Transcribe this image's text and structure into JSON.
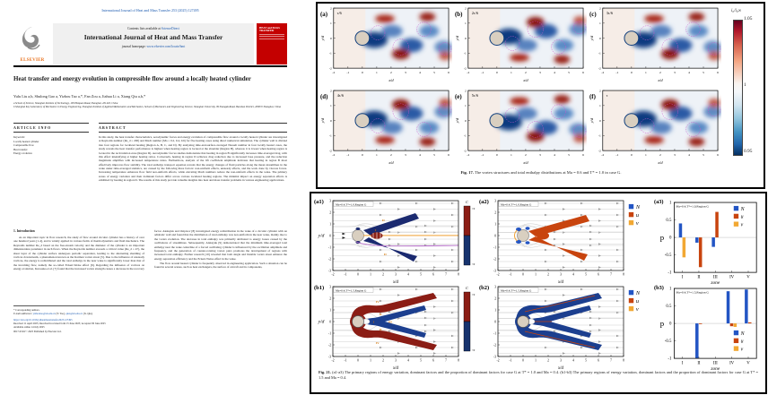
{
  "paper": {
    "journal_ref": "International Journal of Heat and Mass Transfer 253 (2025) 127495",
    "header": {
      "contents_prefix": "Contents lists available at",
      "contents_link": "ScienceDirect",
      "journal_title": "International Journal of Heat and Mass Transfer",
      "homepage_prefix": "journal homepage:",
      "homepage_link": "www.elsevier.com/locate/hmt",
      "publisher": "ELSEVIER",
      "cover_title": "HEAT and MASS TRANSFER"
    },
    "title": "Heat transfer and energy evolution in compressible flow around a locally heated cylinder",
    "authors": "Yulu Liu a,b, Shulong Gao a, Yizhou Tao a,*, Fan Zou a, Jiahua Li a, Xiang Qiu a,b,*",
    "affiliation_a": "a School of Science, Shanghai Institute of Technology, 100 Haiquan Road, Shanghai, 201418, China",
    "affiliation_b": "b Shanghai Key Laboratory of Mechanics in Energy Engineering, Shanghai Institute of Applied Mathematics and Mechanics, School of Mechanics and Engineering Science, Shanghai University, 99 Shangda Road, Baoshan District, 200072 Shanghai, China",
    "article_info_heading": "ARTICLE INFO",
    "abstract_heading": "ABSTRACT",
    "keywords_label": "Keywords:",
    "keywords": [
      "Locally heated cylinder",
      "Compressible flow",
      "Heat transfer",
      "Energy evolution"
    ],
    "abstract": "In this study, the heat transfer characteristics, aerodynamic forces and energy evolution of compressible flow around a locally heated cylinder are investigated at Reynolds number (Re_d = 200) and Mach number (Ma = 0.2, 0.4, 0.6) for five heating cases using direct numerical simulation. The cylinder wall is divided into four regions for localized heating (Region A, B, C, and D). By analyzing time-and-surface-averaged Nusselt number in four locally heated cases, the study reveals the heat transfer performance is highest when heating region is located at the shoulder (Region B), whereas it is lowest when heating region is located in the recirculation zone (Region D). Aerodynamic forces studies demonstrate that heating in region B significantly increases time-averaged drag, with this effect intensifying at higher heating ratios. Conversely, heating in region D achieves drag reduction due to increased base pressure, and the reduction magnitude amplifies with increased temperature ratios. Furthermore, analysis of the lift coefficient amplitude indicates that heating in region B most effectively improves flow stability. The total enthalpy transport equation reveals that the energy changes of fluid particles along the mean streamlines in the wake under time-averaged statistics, are caused by the following three factors: non-uniform effects, unsteady effects, and the work done by viscous forces. Increasing temperature enhances flow field non-uniform effects, while elevating Mach numbers reduce the non-uniform effects in the wake. The primary zones of energy variation and their dominant factors differ across various localized heating regions. The minimal impact on energy separation effects is exhibited by heating in region D. The results of this study provide valuable insights into heat and mass transfer problems in various engineering applications.",
    "intro_heading": "1. Introduction",
    "intro_col1": "As an important topic in flow research, the study of flow around circular cylinder has a history of over one hundred years [1-4], and is widely applied in various fields of thermodynamics and fluid mechanics. The Reynolds number Re_d based on the free-stream velocity and the diameter of the cylinder is an important dimensionless parameter in such flows. When the Reynolds number exceeds a critical value (Re_d = 47), the shear layer of the cylinder surface undergoes periodic separation, leading to the alternating shedding of vortices downstream, a phenomenon known as the Karman vortex street [5]. Due to the influence of unsteady vortices, the energy is redistributed and the total enthalpy in the near wake is significantly lower than that of the incoming flow, namely the so-called Eckert-Weise effect [6]. Regarding the influence of vortices on energy evolution, Kurosaka et al. [7] found that the increased vortex strength causes a decrease in the recovery",
    "intro_col2_p1": "factor. Aleksyuk and Osiptsov [8] investigated energy redistribution in the wake of a circular cylinder with an adiabatic wall and found that the distribution of total enthalpy was non-uniform in the near wake, mainly due to the vortex evolution. The decrease in total enthalpy was primarily attributed to energy losses caused by the oscillations of streamlines. Subsequently, Aleksyuk [9] demonstrated that the minimum time-averaged total enthalpy near the wake centerline of a forced oscillating cylinder is influenced by the oscillation amplitude and frequency, and the generation of counter-rotating vortex pairs promotes the development of regions with increased total enthalpy. Further research [10] revealed that both single and bistable vortex street enhance the energy separation efficiency and the Eckert-Weise effect in the wake.",
    "intro_col2_p2": "The flow around heated cylinder is frequently observed in engineering application. Such a situation can be found in several scenes, such as heat exchangers, the surface of aircraft and in components,",
    "footnote_star": "* Corresponding authors.",
    "footnote_email_prefix": "E-mail addresses:",
    "footnote_email1": "yizhoutao@sit.edu.cn",
    "footnote_email1_suffix": "(Y. Tao),",
    "footnote_email2": "qiux@sit.edu.cn",
    "footnote_email2_suffix": "(X. Qiu).",
    "doi": "https://doi.org/10.1016/j.ijheatmasstransfer.2025.127495",
    "received": "Received 11 April 2025; Received in revised form 15 June 2025; Accepted 30 June 2025",
    "online": "Available online 14 July 2025",
    "issn": "0017-9310/© 2025 Published by Elsevier Ltd."
  },
  "fig17": {
    "panels": [
      {
        "letter": "(a)",
        "time": "τ/6"
      },
      {
        "letter": "(b)",
        "time": "2τ/6"
      },
      {
        "letter": "(c)",
        "time": "3τ/6"
      },
      {
        "letter": "(d)",
        "time": "4τ/6"
      },
      {
        "letter": "(e)",
        "time": "5τ/6"
      },
      {
        "letter": "(f)",
        "time": "τ"
      }
    ],
    "xlabel": "x/d",
    "ylabel": "y/d",
    "xticks": [
      "-2",
      "-1",
      "0",
      "1",
      "2",
      "3",
      "4",
      "5",
      "6"
    ],
    "yticks": [
      "2",
      "1",
      "0",
      "-1",
      "-2"
    ],
    "colorbar": {
      "label": "i₀/i₀∞",
      "tick_top": "1.05",
      "tick_mid": "1",
      "tick_bottom": "0.95"
    },
    "caption_label": "Fig. 17.",
    "caption_text": "The vortex structures and total enthalpy distributions at Ma = 0.6 and T* = 1.0 in case G."
  },
  "fig21": {
    "panels": [
      {
        "id": "(a1)",
        "cond": "Ma=0.4,T*=1.0,Region G",
        "ylabel": true,
        "colorbar": true,
        "overlay": "a1"
      },
      {
        "id": "(a2)",
        "cond": "Ma=0.4,T*=1.0,Region G",
        "legend": true,
        "overlay": "a2"
      },
      {
        "id": "(b1)",
        "cond": "Ma=0.4,T*=1.5,Region G",
        "ylabel": true,
        "colorbar": true,
        "overlay": "b1"
      },
      {
        "id": "(b2)",
        "cond": "Ma=0.4,T*=1.5,Region G",
        "legend": true,
        "overlay": "b2"
      }
    ],
    "xlabel": "x/d",
    "ylabel": "y/d",
    "xticks": [
      "-2",
      "-1",
      "0",
      "1",
      "2",
      "3",
      "4",
      "5",
      "6",
      "7",
      "8"
    ],
    "yticks": [
      "3",
      "2",
      "1",
      "0",
      "-1",
      "-2",
      "-3"
    ],
    "colorbar": {
      "label": "C",
      "tick_top": ">0",
      "tick_bottom": "<0"
    },
    "legend": [
      {
        "label": "N",
        "color": "#2355c4"
      },
      {
        "label": "u",
        "color": "#c8440e"
      },
      {
        "label": "v",
        "color": "#f2a833"
      }
    ],
    "zone_labels": [
      "I",
      "II",
      "III",
      "IV",
      "V"
    ],
    "caption_label": "Fig. 21.",
    "caption_text": "(a1-a3) The primary regions of energy variation, dominant factors and the proportion of dominant factors for case G at T* = 1.0 and Ma = 0.4. (b1-b3) The primary regions of energy variation, dominant factors and the proportion of dominant factors for case G at T* = 1.5 and Ma = 0.4."
  },
  "chart_data": [
    {
      "id": "a3",
      "panel_id": "(a3)",
      "type": "bar",
      "title": "Ma=0.4,T*=1.0,Region G",
      "categories": [
        "I",
        "II",
        "III",
        "IV",
        "V"
      ],
      "series": [
        {
          "name": "N",
          "color": "#2355c4",
          "values": [
            0.4,
            -0.15,
            -0.27,
            0,
            0
          ]
        },
        {
          "name": "u",
          "color": "#c8440e",
          "values": [
            0,
            -0.85,
            0.73,
            0,
            0
          ]
        },
        {
          "name": "v",
          "color": "#f2a833",
          "values": [
            -0.57,
            0,
            0,
            0,
            0
          ]
        }
      ],
      "xlabel": "zone",
      "ylabel": "p",
      "ylim": [
        -1,
        1
      ],
      "yticks": [
        "1",
        "0.5",
        "0",
        "-0.5",
        "-1"
      ],
      "legend_position": "top-right"
    },
    {
      "id": "b3",
      "panel_id": "(b3)",
      "type": "bar",
      "title": "Ma=0.4,T*=1.5,Region G",
      "categories": [
        "I",
        "II",
        "III",
        "IV",
        "V"
      ],
      "series": [
        {
          "name": "N",
          "color": "#2355c4",
          "values": [
            0,
            -1.0,
            0,
            0.92,
            0.97
          ]
        },
        {
          "name": "u",
          "color": "#c8440e",
          "values": [
            0,
            -0.02,
            0,
            -0.08,
            0.03
          ]
        },
        {
          "name": "v",
          "color": "#f2a833",
          "values": [
            0,
            0,
            0,
            -0.1,
            0
          ]
        }
      ],
      "xlabel": "zone",
      "ylabel": "p",
      "ylim": [
        -1,
        1
      ],
      "yticks": [
        "1",
        "0.5",
        "0",
        "-0.5",
        "-1"
      ],
      "legend_position": "bottom-right"
    }
  ]
}
